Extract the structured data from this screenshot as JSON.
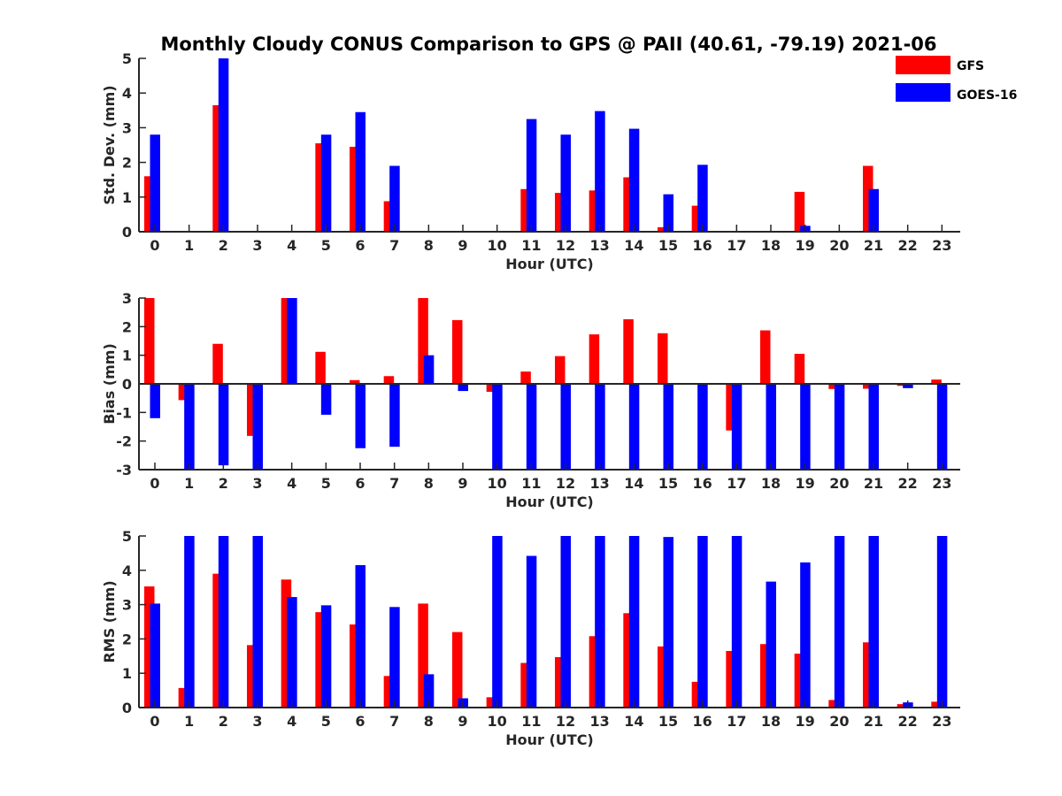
{
  "title": "Monthly Cloudy CONUS Comparison to GPS @ PAII (40.61, -79.19) 2021-06",
  "legend": {
    "placement": "top-right",
    "entries": [
      {
        "label": "GFS",
        "color": "#ff0000"
      },
      {
        "label": "GOES-16",
        "color": "#0000ff"
      }
    ]
  },
  "chart_data": [
    {
      "type": "bar",
      "ylabel": "Std. Dev. (mm)",
      "xlabel": "Hour (UTC)",
      "ylim": [
        0,
        5
      ],
      "yticks": [
        0,
        1,
        2,
        3,
        4,
        5
      ],
      "categories": [
        "0",
        "1",
        "2",
        "3",
        "4",
        "5",
        "6",
        "7",
        "8",
        "9",
        "10",
        "11",
        "12",
        "13",
        "14",
        "15",
        "16",
        "17",
        "18",
        "19",
        "20",
        "21",
        "22",
        "23"
      ],
      "series": [
        {
          "name": "GFS",
          "color": "#ff0000",
          "values": [
            1.6,
            0,
            3.65,
            0,
            0,
            2.55,
            2.45,
            0.88,
            0,
            0,
            0,
            1.23,
            1.12,
            1.19,
            1.57,
            0.13,
            0.75,
            0,
            0,
            1.15,
            0,
            1.9,
            0,
            0
          ]
        },
        {
          "name": "GOES-16",
          "color": "#0000ff",
          "values": [
            2.8,
            0,
            5.0,
            0,
            0,
            2.8,
            3.45,
            1.9,
            0,
            0,
            0,
            3.25,
            2.8,
            3.48,
            2.97,
            1.08,
            1.93,
            0,
            0,
            0.17,
            0,
            1.23,
            0,
            0
          ]
        }
      ]
    },
    {
      "type": "bar",
      "ylabel": "Bias (mm)",
      "xlabel": "Hour (UTC)",
      "ylim": [
        -3,
        3
      ],
      "yticks": [
        -3,
        -2,
        -1,
        0,
        1,
        2,
        3
      ],
      "categories": [
        "0",
        "1",
        "2",
        "3",
        "4",
        "5",
        "6",
        "7",
        "8",
        "9",
        "10",
        "11",
        "12",
        "13",
        "14",
        "15",
        "16",
        "17",
        "18",
        "19",
        "20",
        "21",
        "22",
        "23"
      ],
      "series": [
        {
          "name": "GFS",
          "color": "#ff0000",
          "values": [
            3.0,
            -0.57,
            1.4,
            -1.82,
            3.0,
            1.12,
            0.13,
            0.27,
            3.0,
            2.23,
            -0.28,
            0.43,
            0.97,
            1.73,
            2.26,
            1.77,
            0,
            -1.63,
            1.87,
            1.05,
            -0.18,
            -0.17,
            -0.07,
            0.15
          ]
        },
        {
          "name": "GOES-16",
          "color": "#0000ff",
          "values": [
            -1.2,
            -3.0,
            -2.85,
            -3.0,
            3.0,
            -1.08,
            -2.25,
            -2.2,
            1.0,
            -0.25,
            -3.0,
            -3.0,
            -3.0,
            -3.0,
            -3.0,
            -3.0,
            -3.0,
            -3.0,
            -3.0,
            -3.0,
            -3.0,
            -3.0,
            -0.15,
            -3.0
          ]
        }
      ]
    },
    {
      "type": "bar",
      "ylabel": "RMS (mm)",
      "xlabel": "Hour (UTC)",
      "ylim": [
        0,
        5
      ],
      "yticks": [
        0,
        1,
        2,
        3,
        4,
        5
      ],
      "categories": [
        "0",
        "1",
        "2",
        "3",
        "4",
        "5",
        "6",
        "7",
        "8",
        "9",
        "10",
        "11",
        "12",
        "13",
        "14",
        "15",
        "16",
        "17",
        "18",
        "19",
        "20",
        "21",
        "22",
        "23"
      ],
      "series": [
        {
          "name": "GFS",
          "color": "#ff0000",
          "values": [
            3.53,
            0.57,
            3.9,
            1.82,
            3.73,
            2.78,
            2.42,
            0.92,
            3.03,
            2.2,
            0.3,
            1.3,
            1.47,
            2.08,
            2.75,
            1.78,
            0.75,
            1.65,
            1.85,
            1.57,
            0.22,
            1.9,
            0.1,
            0.17
          ]
        },
        {
          "name": "GOES-16",
          "color": "#0000ff",
          "values": [
            3.03,
            5.0,
            5.0,
            5.0,
            3.22,
            2.98,
            4.15,
            2.93,
            0.97,
            0.27,
            5.0,
            4.42,
            5.0,
            5.0,
            5.0,
            4.97,
            5.0,
            5.0,
            3.67,
            4.23,
            5.0,
            5.0,
            0.15,
            5.0
          ]
        }
      ]
    }
  ]
}
